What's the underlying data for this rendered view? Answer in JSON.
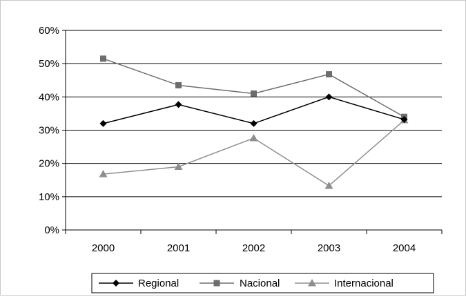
{
  "chart_data": {
    "type": "line",
    "title": "",
    "xlabel": "",
    "ylabel": "",
    "categories": [
      "2000",
      "2001",
      "2002",
      "2003",
      "2004"
    ],
    "y_ticks": [
      "0%",
      "10%",
      "20%",
      "30%",
      "40%",
      "50%",
      "60%"
    ],
    "ylim": [
      0,
      60
    ],
    "grid": "horizontal",
    "legend_position": "bottom",
    "series": [
      {
        "name": "Regional",
        "values": [
          32,
          37.7,
          32,
          40,
          33.2
        ],
        "color": "#000000",
        "marker": "diamond"
      },
      {
        "name": "Nacional",
        "values": [
          51.5,
          43.5,
          41,
          46.8,
          34
        ],
        "color": "#6d6d6d",
        "marker": "square"
      },
      {
        "name": "Internacional",
        "values": [
          16.8,
          19,
          27.6,
          13.3,
          33
        ],
        "color": "#8e8e8e",
        "marker": "triangle"
      }
    ]
  }
}
